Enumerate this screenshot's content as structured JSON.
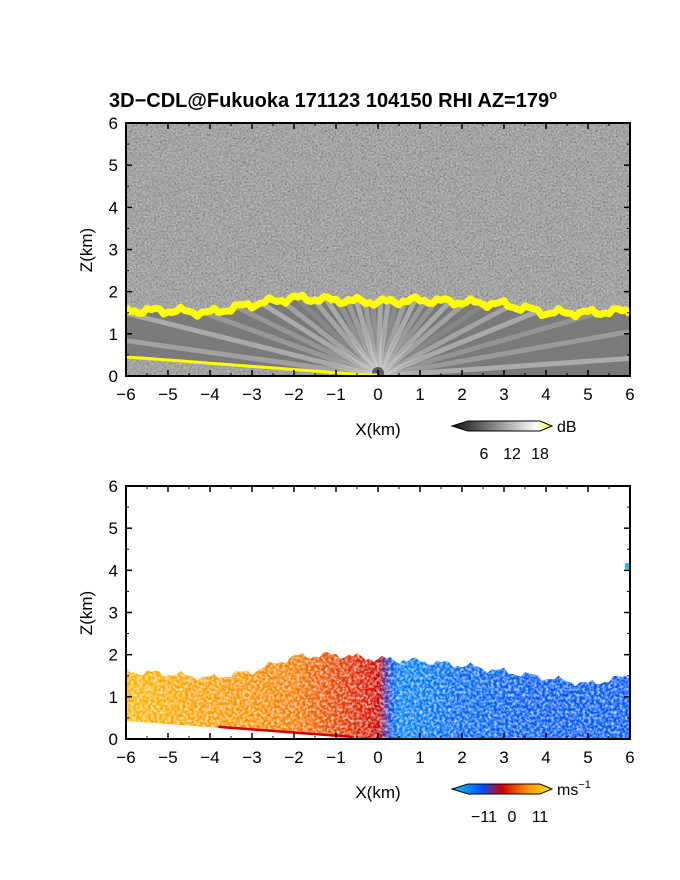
{
  "title": "3D−CDL@Fukuoka 171123 104150 RHI AZ=179",
  "title_degree": "o",
  "chart_data": [
    {
      "type": "heatmap",
      "field": "backscatter intensity",
      "xlabel": "X(km)",
      "ylabel": "Z(km)",
      "xlim": [
        -6,
        6
      ],
      "ylim": [
        0,
        6
      ],
      "xticks": [
        -6,
        -5,
        -4,
        -3,
        -2,
        -1,
        0,
        1,
        2,
        3,
        4,
        5,
        6
      ],
      "yticks": [
        0,
        1,
        2,
        3,
        4,
        5,
        6
      ],
      "colorbar": {
        "unit": "dB",
        "ticks": [
          "6",
          "12",
          "18"
        ],
        "range": [
          0,
          20
        ],
        "colors": [
          "#101010",
          "#ffffff",
          "#ffff00"
        ]
      },
      "echo_top_km": [
        {
          "x": -6.0,
          "z": 1.55
        },
        {
          "x": -5.0,
          "z": 1.55
        },
        {
          "x": -4.0,
          "z": 1.5
        },
        {
          "x": -3.0,
          "z": 1.7
        },
        {
          "x": -2.0,
          "z": 1.85
        },
        {
          "x": -1.0,
          "z": 1.8
        },
        {
          "x": 0.0,
          "z": 1.75
        },
        {
          "x": 1.0,
          "z": 1.8
        },
        {
          "x": 2.0,
          "z": 1.75
        },
        {
          "x": 3.0,
          "z": 1.7
        },
        {
          "x": 4.0,
          "z": 1.5
        },
        {
          "x": 5.0,
          "z": 1.5
        },
        {
          "x": 6.0,
          "z": 1.55
        }
      ]
    },
    {
      "type": "heatmap",
      "field": "radial velocity",
      "xlabel": "X(km)",
      "ylabel": "Z(km)",
      "xlim": [
        -6,
        6
      ],
      "ylim": [
        0,
        6
      ],
      "xticks": [
        -6,
        -5,
        -4,
        -3,
        -2,
        -1,
        0,
        1,
        2,
        3,
        4,
        5,
        6
      ],
      "yticks": [
        0,
        1,
        2,
        3,
        4,
        5,
        6
      ],
      "colorbar": {
        "unit": "ms",
        "unit_exponent": "−1",
        "ticks": [
          "−11",
          "0",
          "11"
        ],
        "range": [
          -14,
          14
        ],
        "colors": [
          "#00c8f0",
          "#0050ff",
          "#d00000",
          "#ff9000",
          "#ffe800"
        ]
      },
      "echo_top_km": [
        {
          "x": -6.0,
          "z": 1.6
        },
        {
          "x": -5.0,
          "z": 1.55
        },
        {
          "x": -4.0,
          "z": 1.45
        },
        {
          "x": -3.0,
          "z": 1.6
        },
        {
          "x": -2.0,
          "z": 1.95
        },
        {
          "x": -1.0,
          "z": 2.0
        },
        {
          "x": 0.0,
          "z": 1.9
        },
        {
          "x": 1.0,
          "z": 1.85
        },
        {
          "x": 2.0,
          "z": 1.75
        },
        {
          "x": 3.0,
          "z": 1.6
        },
        {
          "x": 4.0,
          "z": 1.45
        },
        {
          "x": 5.0,
          "z": 1.3
        },
        {
          "x": 6.0,
          "z": 1.5
        }
      ],
      "velocity_km_per_x": [
        {
          "x": -6.0,
          "v": 10
        },
        {
          "x": -4.0,
          "v": 8
        },
        {
          "x": -2.0,
          "v": 6
        },
        {
          "x": -0.5,
          "v": 2
        },
        {
          "x": 0.0,
          "v": 0
        },
        {
          "x": 0.5,
          "v": -9
        },
        {
          "x": 2.0,
          "v": -7
        },
        {
          "x": 4.0,
          "v": -6
        },
        {
          "x": 6.0,
          "v": -6
        }
      ]
    }
  ]
}
